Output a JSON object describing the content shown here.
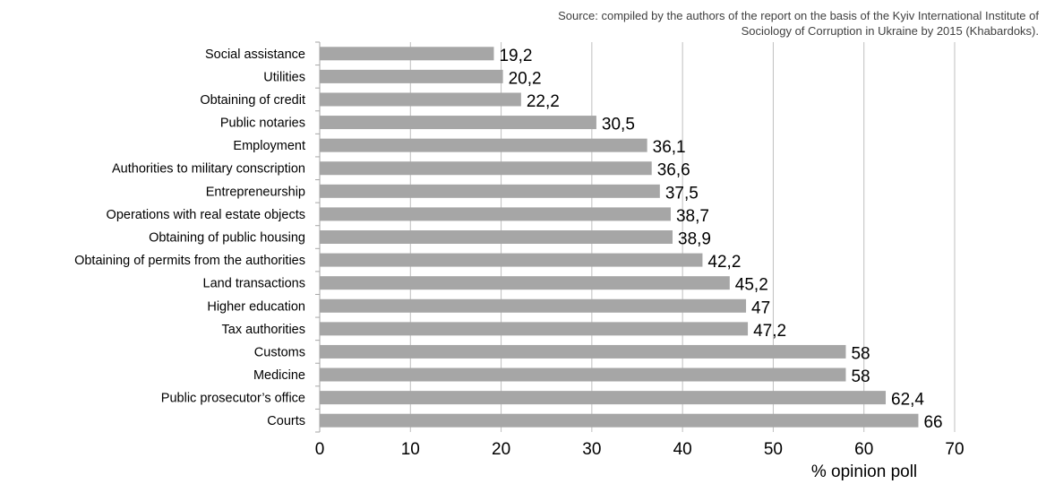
{
  "source_note": {
    "line1": "Source: compiled by the authors of the report on the basis of the Kyiv International Institute of",
    "line2": "Sociology of Corruption in Ukraine by 2015 (Khabardoks)."
  },
  "colors": {
    "bar": "#a6a6a6",
    "grid": "#bfbfbf",
    "axis": "#a6a6a6",
    "text": "#000000",
    "note_text": "#404040"
  },
  "chart_data": {
    "type": "bar",
    "orientation": "horizontal",
    "categories": [
      "Social assistance",
      "Utilities",
      "Obtaining of credit",
      "Public notaries",
      "Employment",
      "Authorities to military conscription",
      "Entrepreneurship",
      "Operations with real estate objects",
      "Obtaining of public housing",
      "Obtaining of permits from the authorities",
      "Land transactions",
      "Higher education",
      "Tax authorities",
      "Customs",
      "Medicine",
      "Public prosecutor’s office",
      "Courts"
    ],
    "values": [
      19.2,
      20.2,
      22.2,
      30.5,
      36.1,
      36.6,
      37.5,
      38.7,
      38.9,
      42.2,
      45.2,
      47,
      47.2,
      58,
      58,
      62.4,
      66
    ],
    "value_labels": [
      "19,2",
      "20,2",
      "22,2",
      "30,5",
      "36,1",
      "36,6",
      "37,5",
      "38,7",
      "38,9",
      "42,2",
      "45,2",
      "47",
      "47,2",
      "58",
      "58",
      "62,4",
      "66"
    ],
    "x_ticks": [
      "0",
      "10",
      "20",
      "30",
      "40",
      "50",
      "60",
      "70"
    ],
    "xlim": [
      0,
      70
    ],
    "xlabel": "% opinion poll",
    "title": "",
    "grid": "vertical",
    "legend": "none"
  }
}
